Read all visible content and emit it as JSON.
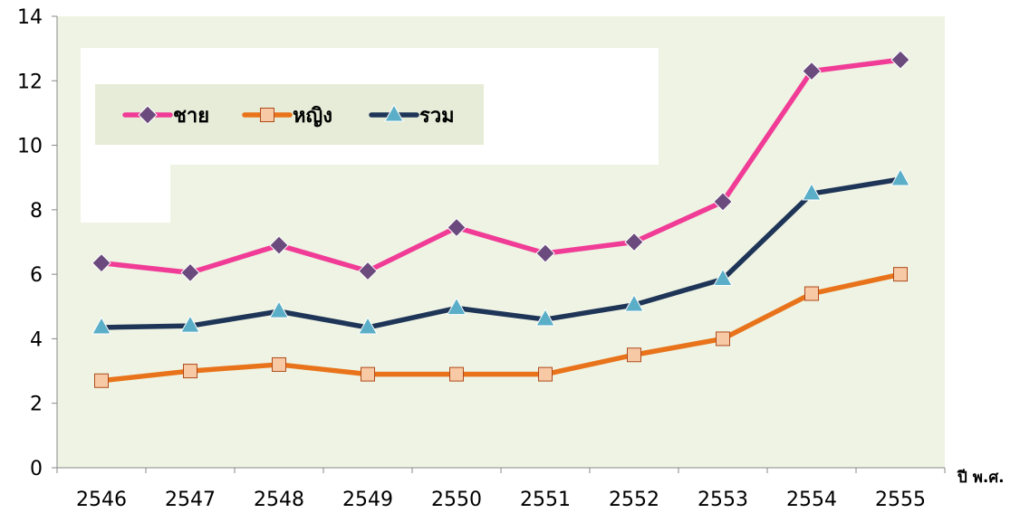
{
  "chart_data": {
    "type": "line",
    "title": "",
    "xlabel": "ปี พ.ศ.",
    "ylabel": "",
    "categories": [
      "2546",
      "2547",
      "2548",
      "2549",
      "2550",
      "2551",
      "2552",
      "2553",
      "2554",
      "2555"
    ],
    "ylim": [
      0,
      14
    ],
    "yticks": [
      0,
      2,
      4,
      6,
      8,
      10,
      12,
      14
    ],
    "grid": false,
    "legend_position": "top-left",
    "series": [
      {
        "name": "ชาย",
        "marker": "diamond",
        "color": "#f03c96",
        "marker_color": "#6b4a7e",
        "values": [
          6.35,
          6.05,
          6.9,
          6.1,
          7.45,
          6.65,
          7.0,
          8.25,
          12.3,
          12.65
        ]
      },
      {
        "name": "หญิง",
        "marker": "square",
        "color": "#e8731a",
        "marker_color": "#f7c9a5",
        "values": [
          2.7,
          3.0,
          3.2,
          2.9,
          2.9,
          2.9,
          3.5,
          4.0,
          5.4,
          6.0
        ]
      },
      {
        "name": "รวม",
        "marker": "triangle",
        "color": "#1f3558",
        "marker_color": "#5aaec8",
        "values": [
          4.35,
          4.4,
          4.85,
          4.35,
          4.95,
          4.6,
          5.05,
          5.85,
          8.5,
          8.95
        ]
      }
    ]
  },
  "colors": {
    "plot_background": "#eef3e3",
    "legend_background": "#e6ecd8",
    "axis": "#888888"
  }
}
